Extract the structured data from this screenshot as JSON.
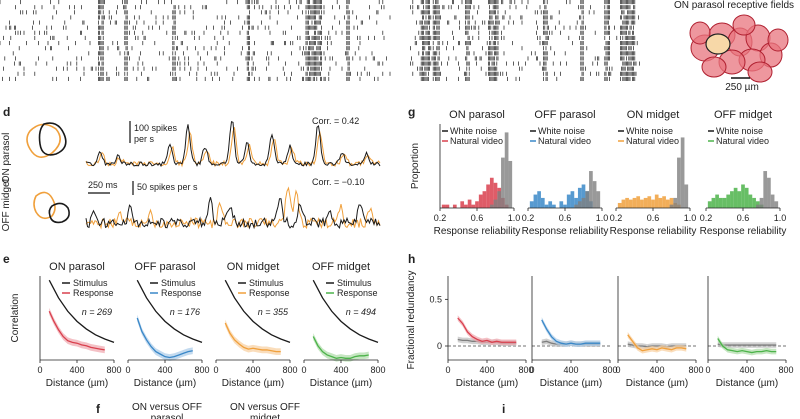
{
  "colors": {
    "black": "#1a1a1a",
    "gray": "#7f7f7f",
    "grayband": "#bdbdbd",
    "on_parasol": "#d9404e",
    "on_parasol_band": "#f0a7ae",
    "off_parasol": "#3a88c8",
    "off_parasol_band": "#a9cbe8",
    "on_midget": "#f0a03c",
    "on_midget_band": "#f8cf9e",
    "off_midget": "#4cb34a",
    "off_midget_band": "#aedca8",
    "rf_fill": "#e8747e",
    "rf_highlight": "#f7d8a8"
  },
  "panel_letters": {
    "d": "d",
    "e": "e",
    "f": "f",
    "g": "g",
    "h": "h",
    "i": "i"
  },
  "rf_panel": {
    "title": "ON parasol receptive fields",
    "scale_label": "250 µm"
  },
  "panel_d": {
    "row_labels": [
      "ON parasol",
      "OFF midget"
    ],
    "trace1": {
      "scale_label": "100 spikes\nper s",
      "scale_label_l1": "100 spikes",
      "scale_label_l2": "per s",
      "corr_label": "Corr. = 0.42"
    },
    "trace2": {
      "scale_label": "50 spikes per s",
      "corr_label": "Corr. = −0.10"
    },
    "time_scale": "250 ms"
  },
  "chart_data": [
    {
      "panel": "g",
      "type": "histogram",
      "ylabel": "Proportion",
      "xlabel": "Response reliability",
      "xticks": [
        "0.2",
        "0.6",
        "1.0"
      ],
      "xlim": [
        0.2,
        1.0
      ],
      "subplots": [
        {
          "title": "ON parasol",
          "legend": [
            "White noise",
            "Natural video"
          ],
          "color_key": "on_parasol",
          "bins_center": [
            0.24,
            0.28,
            0.32,
            0.36,
            0.4,
            0.44,
            0.48,
            0.52,
            0.56,
            0.6,
            0.64,
            0.68,
            0.72,
            0.76,
            0.8,
            0.84,
            0.88,
            0.92,
            0.96
          ],
          "white_noise": [
            0,
            0,
            0,
            0,
            0,
            0,
            0,
            0,
            0,
            0,
            0,
            0,
            0,
            0.02,
            0.05,
            0.1,
            0.3,
            0.45,
            0.28
          ],
          "natural_video": [
            0.02,
            0.02,
            0,
            0.02,
            0,
            0.04,
            0.02,
            0.05,
            0.02,
            0.04,
            0.08,
            0.1,
            0.14,
            0.18,
            0.15,
            0.12,
            0.06,
            0.02,
            0
          ]
        },
        {
          "title": "OFF parasol",
          "legend": [
            "White noise",
            "Natural video"
          ],
          "color_key": "off_parasol",
          "bins_center": [
            0.24,
            0.28,
            0.32,
            0.36,
            0.4,
            0.44,
            0.48,
            0.52,
            0.56,
            0.6,
            0.64,
            0.68,
            0.72,
            0.76,
            0.8,
            0.84,
            0.88,
            0.92,
            0.96
          ],
          "white_noise": [
            0,
            0,
            0,
            0,
            0,
            0,
            0,
            0,
            0,
            0,
            0,
            0,
            0.02,
            0.04,
            0.06,
            0.1,
            0.22,
            0.16,
            0.1
          ],
          "natural_video": [
            0.04,
            0.08,
            0.1,
            0.06,
            0.02,
            0.04,
            0.02,
            0,
            0.04,
            0.02,
            0.08,
            0.1,
            0.06,
            0.12,
            0.14,
            0.1,
            0.04,
            0,
            0
          ]
        },
        {
          "title": "ON midget",
          "legend": [
            "White noise",
            "Natural video"
          ],
          "color_key": "on_midget",
          "bins_center": [
            0.24,
            0.28,
            0.32,
            0.36,
            0.4,
            0.44,
            0.48,
            0.52,
            0.56,
            0.6,
            0.64,
            0.68,
            0.72,
            0.76,
            0.8,
            0.84,
            0.88,
            0.92,
            0.96
          ],
          "white_noise": [
            0,
            0,
            0,
            0,
            0,
            0,
            0,
            0,
            0,
            0,
            0,
            0,
            0,
            0,
            0.02,
            0.06,
            0.3,
            0.42,
            0.14
          ],
          "natural_video": [
            0.03,
            0.05,
            0.06,
            0.05,
            0.06,
            0.07,
            0.05,
            0.06,
            0.07,
            0.05,
            0.08,
            0.06,
            0.07,
            0.05,
            0.06,
            0.03,
            0.02,
            0,
            0
          ]
        },
        {
          "title": "OFF midget",
          "legend": [
            "White noise",
            "Natural video"
          ],
          "color_key": "off_midget",
          "bins_center": [
            0.24,
            0.28,
            0.32,
            0.36,
            0.4,
            0.44,
            0.48,
            0.52,
            0.56,
            0.6,
            0.64,
            0.68,
            0.72,
            0.76,
            0.8,
            0.84,
            0.88,
            0.92,
            0.96
          ],
          "white_noise": [
            0,
            0,
            0,
            0,
            0,
            0,
            0,
            0,
            0,
            0,
            0,
            0,
            0,
            0.02,
            0.06,
            0.22,
            0.18,
            0.08,
            0.04
          ],
          "natural_video": [
            0.04,
            0.06,
            0.08,
            0.06,
            0.06,
            0.08,
            0.1,
            0.12,
            0.1,
            0.14,
            0.12,
            0.08,
            0.06,
            0.04,
            0.02,
            0,
            0,
            0,
            0
          ]
        }
      ]
    },
    {
      "panel": "e",
      "type": "line",
      "ylabel": "Correlation",
      "xlabel": "Distance (µm)",
      "xticks": [
        "0",
        "400",
        "800"
      ],
      "xlim": [
        0,
        800
      ],
      "ylim": [
        0,
        1
      ],
      "subplots": [
        {
          "title": "ON parasol",
          "legend": [
            "Stimulus",
            "Response"
          ],
          "n_label": "n = 269",
          "color_key": "on_parasol",
          "stimulus_x": [
            100,
            200,
            300,
            400,
            500,
            600,
            700,
            800
          ],
          "stimulus_y": [
            0.95,
            0.74,
            0.58,
            0.46,
            0.37,
            0.3,
            0.25,
            0.21
          ],
          "response_x": [
            100,
            150,
            200,
            250,
            300,
            350,
            400,
            450,
            500,
            550,
            600,
            650,
            700
          ],
          "response_y": [
            0.58,
            0.46,
            0.36,
            0.28,
            0.23,
            0.21,
            0.2,
            0.18,
            0.17,
            0.15,
            0.14,
            0.13,
            0.12
          ]
        },
        {
          "title": "OFF parasol",
          "legend": [
            "Stimulus",
            "Response"
          ],
          "n_label": "n = 176",
          "color_key": "off_parasol",
          "stimulus_x": [
            100,
            200,
            300,
            400,
            500,
            600,
            700,
            800
          ],
          "stimulus_y": [
            0.95,
            0.74,
            0.58,
            0.46,
            0.37,
            0.3,
            0.25,
            0.21
          ],
          "response_x": [
            100,
            150,
            200,
            250,
            300,
            350,
            400,
            450,
            500,
            550,
            600,
            650,
            700
          ],
          "response_y": [
            0.5,
            0.34,
            0.24,
            0.16,
            0.1,
            0.07,
            0.04,
            0.03,
            0.04,
            0.06,
            0.08,
            0.1,
            0.11
          ]
        },
        {
          "title": "ON midget",
          "legend": [
            "Stimulus",
            "Response"
          ],
          "n_label": "n = 355",
          "color_key": "on_midget",
          "stimulus_x": [
            100,
            200,
            300,
            400,
            500,
            600,
            700,
            800
          ],
          "stimulus_y": [
            0.95,
            0.74,
            0.58,
            0.46,
            0.37,
            0.3,
            0.25,
            0.21
          ],
          "response_x": [
            100,
            150,
            200,
            250,
            300,
            350,
            400,
            450,
            500,
            550,
            600,
            650,
            700
          ],
          "response_y": [
            0.44,
            0.32,
            0.24,
            0.19,
            0.15,
            0.13,
            0.14,
            0.13,
            0.12,
            0.12,
            0.11,
            0.1,
            0.1
          ]
        },
        {
          "title": "OFF midget",
          "legend": [
            "Stimulus",
            "Response"
          ],
          "n_label": "n = 494",
          "color_key": "off_midget",
          "stimulus_x": [
            100,
            200,
            300,
            400,
            500,
            600,
            700,
            800
          ],
          "stimulus_y": [
            0.95,
            0.74,
            0.58,
            0.46,
            0.37,
            0.3,
            0.25,
            0.21
          ],
          "response_x": [
            100,
            150,
            200,
            250,
            300,
            350,
            400,
            450,
            500,
            550,
            600,
            650,
            700
          ],
          "response_y": [
            0.28,
            0.17,
            0.1,
            0.06,
            0.04,
            0.02,
            0.03,
            0.02,
            0.02,
            0.04,
            0.05,
            0.05,
            0.06
          ]
        }
      ]
    },
    {
      "panel": "h",
      "type": "line",
      "ylabel": "Fractional redundancy",
      "xlabel": "Distance (µm)",
      "xticks": [
        "0",
        "400",
        "800"
      ],
      "yticks": [
        "0",
        "0.5"
      ],
      "xlim": [
        0,
        800
      ],
      "ylim": [
        -0.15,
        0.75
      ],
      "subplots": [
        {
          "color_key": "on_parasol",
          "x": [
            100,
            150,
            200,
            250,
            300,
            350,
            400,
            450,
            500,
            550,
            600,
            650,
            700
          ],
          "white_noise_y": [
            0.07,
            0.06,
            0.06,
            0.05,
            0.05,
            0.04,
            0.04,
            0.04,
            0.04,
            0.03,
            0.03,
            0.03,
            0.03
          ],
          "natural_video_y": [
            0.3,
            0.24,
            0.15,
            0.1,
            0.07,
            0.05,
            0.06,
            0.04,
            0.05,
            0.04,
            0.04,
            0.04,
            0.04
          ]
        },
        {
          "color_key": "off_parasol",
          "x": [
            100,
            150,
            200,
            250,
            300,
            350,
            400,
            450,
            500,
            550,
            600,
            650,
            700
          ],
          "white_noise_y": [
            0.04,
            0.05,
            0.03,
            0.02,
            0.02,
            0.02,
            0.03,
            0.02,
            0.02,
            0.02,
            0.02,
            0.02,
            0.02
          ],
          "natural_video_y": [
            0.28,
            0.18,
            0.1,
            0.05,
            0.03,
            0.02,
            0.03,
            0.02,
            0.02,
            0.03,
            0.03,
            0.03,
            0.03
          ]
        },
        {
          "color_key": "on_midget",
          "x": [
            100,
            150,
            200,
            250,
            300,
            350,
            400,
            450,
            500,
            550,
            600,
            650,
            700
          ],
          "white_noise_y": [
            0.02,
            0.01,
            0.0,
            0.0,
            -0.01,
            0.0,
            0.0,
            0.0,
            -0.01,
            0.0,
            0.0,
            0.0,
            0.0
          ],
          "natural_video_y": [
            0.12,
            0.05,
            -0.02,
            -0.05,
            -0.04,
            -0.03,
            -0.04,
            -0.02,
            -0.03,
            -0.04,
            -0.02,
            -0.02,
            -0.03
          ]
        },
        {
          "color_key": "off_midget",
          "x": [
            100,
            150,
            200,
            250,
            300,
            350,
            400,
            450,
            500,
            550,
            600,
            650,
            700
          ],
          "white_noise_y": [
            0.02,
            0.01,
            0.01,
            0.01,
            0.01,
            0.01,
            0.01,
            0.01,
            0.01,
            0.01,
            0.01,
            0.01,
            0.01
          ],
          "natural_video_y": [
            0.08,
            0.0,
            -0.04,
            -0.05,
            -0.06,
            -0.05,
            -0.06,
            -0.07,
            -0.06,
            -0.06,
            -0.05,
            -0.06,
            -0.06
          ]
        }
      ]
    }
  ],
  "panel_f": {
    "label1": "ON versus OFF",
    "label1b": "parasol",
    "label2": "ON versus OFF",
    "label2b": "midget"
  }
}
